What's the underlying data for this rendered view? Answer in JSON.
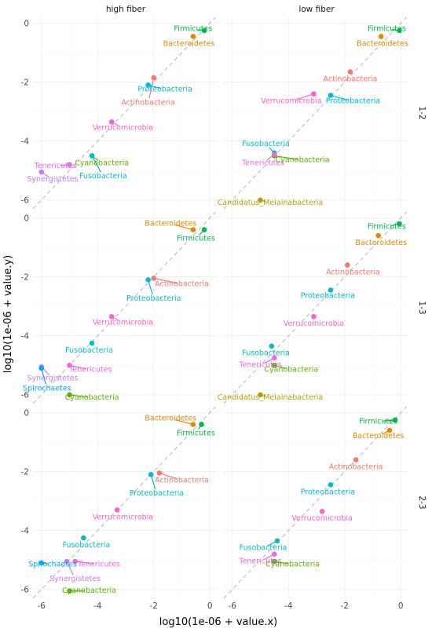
{
  "chart_data": {
    "type": "scatter",
    "xlabel": "log10(1e-06 + value.x)",
    "ylabel": "log10(1e-06 + value.y)",
    "xlim": [
      -6.3,
      0.3
    ],
    "ylim": [
      -6.3,
      0.2
    ],
    "x_ticks": [
      -6,
      -4,
      -2,
      0
    ],
    "y_ticks": [
      0,
      -2,
      -4,
      -6
    ],
    "grid": true,
    "reference_line": "y = x (dashed)",
    "col_facets": [
      "high fiber",
      "low fiber"
    ],
    "row_facets": [
      "1-2",
      "1-3",
      "2-3"
    ],
    "colors": {
      "Firmicutes": "#00b94a",
      "Bacteroidetes": "#e58700",
      "Proteobacteria": "#00bcd8",
      "Actinobacteria": "#f8766d",
      "Verrucomicrobia": "#fd61d1",
      "Cyanobacteria": "#5bb300",
      "Fusobacteria": "#00bfc4",
      "Tenericutes": "#f066ea",
      "Synergistetes": "#c77cff",
      "Spirochaetes": "#00a9ff",
      "Candidatus_Melainabacteria": "#b79f00"
    },
    "panels": [
      {
        "row": "1-2",
        "col": "high fiber",
        "points": [
          {
            "name": "Firmicutes",
            "x": -0.2,
            "y": -0.25,
            "lx": -0.6,
            "ly": -0.2
          },
          {
            "name": "Bacteroidetes",
            "x": -0.6,
            "y": -0.45,
            "lx": -0.75,
            "ly": -0.7
          },
          {
            "name": "Actinobacteria",
            "x": -2.0,
            "y": -1.85,
            "lx": -2.2,
            "ly": -2.7
          },
          {
            "name": "Proteobacteria",
            "x": -2.2,
            "y": -2.1,
            "lx": -1.6,
            "ly": -2.25
          },
          {
            "name": "Verrucomicrobia",
            "x": -3.5,
            "y": -3.35,
            "lx": -3.1,
            "ly": -3.55
          },
          {
            "name": "Cyanobacteria",
            "x": -4.2,
            "y": -4.5,
            "lx": -3.85,
            "ly": -4.75
          },
          {
            "name": "Fusobacteria",
            "x": -4.2,
            "y": -4.5,
            "lx": -3.8,
            "ly": -5.2
          },
          {
            "name": "Tenericutes",
            "x": -5.0,
            "y": -4.8,
            "lx": -5.5,
            "ly": -4.85
          },
          {
            "name": "Synergistetes",
            "x": -6.0,
            "y": -5.05,
            "lx": -5.6,
            "ly": -5.3
          }
        ]
      },
      {
        "row": "1-2",
        "col": "low fiber",
        "points": [
          {
            "name": "Firmicutes",
            "x": -0.05,
            "y": -0.25,
            "lx": -0.5,
            "ly": -0.2
          },
          {
            "name": "Bacteroidetes",
            "x": -0.7,
            "y": -0.45,
            "lx": -0.65,
            "ly": -0.7
          },
          {
            "name": "Actinobacteria",
            "x": -1.8,
            "y": -1.65,
            "lx": -1.8,
            "ly": -1.9
          },
          {
            "name": "Verrucomicrobia",
            "x": -3.1,
            "y": -2.4,
            "lx": -3.9,
            "ly": -2.65
          },
          {
            "name": "Proteobacteria",
            "x": -2.5,
            "y": -2.45,
            "lx": -1.7,
            "ly": -2.65
          },
          {
            "name": "Fusobacteria",
            "x": -4.5,
            "y": -4.4,
            "lx": -4.8,
            "ly": -4.1
          },
          {
            "name": "Cyanobacteria",
            "x": -4.5,
            "y": -4.5,
            "lx": -3.5,
            "ly": -4.65
          },
          {
            "name": "Tenericutes",
            "x": -4.5,
            "y": -4.45,
            "lx": -4.9,
            "ly": -4.75
          },
          {
            "name": "Candidatus_Melainabacteria",
            "x": -5.0,
            "y": -6.0,
            "lx": -4.65,
            "ly": -6.1
          }
        ]
      },
      {
        "row": "1-3",
        "col": "high fiber",
        "points": [
          {
            "name": "Bacteroidetes",
            "x": -0.6,
            "y": -0.4,
            "lx": -1.4,
            "ly": -0.2
          },
          {
            "name": "Firmicutes",
            "x": -0.2,
            "y": -0.4,
            "lx": -0.5,
            "ly": -0.7
          },
          {
            "name": "Actinobacteria",
            "x": -2.0,
            "y": -2.05,
            "lx": -1.0,
            "ly": -2.25
          },
          {
            "name": "Proteobacteria",
            "x": -2.2,
            "y": -2.1,
            "lx": -2.0,
            "ly": -2.75
          },
          {
            "name": "Verrucomicrobia",
            "x": -3.5,
            "y": -3.35,
            "lx": -3.1,
            "ly": -3.55
          },
          {
            "name": "Fusobacteria",
            "x": -4.2,
            "y": -4.25,
            "lx": -4.3,
            "ly": -4.5
          },
          {
            "name": "Tenericutes",
            "x": -5.0,
            "y": -5.0,
            "lx": -4.25,
            "ly": -5.15
          },
          {
            "name": "Synergistetes",
            "x": -6.0,
            "y": -5.05,
            "lx": -5.6,
            "ly": -5.45
          },
          {
            "name": "Spirochaetes",
            "x": -6.0,
            "y": -5.1,
            "lx": -5.8,
            "ly": -5.8
          },
          {
            "name": "Cyanobacteria",
            "x": -5.0,
            "y": -6.0,
            "lx": -4.2,
            "ly": -6.1
          }
        ]
      },
      {
        "row": "1-3",
        "col": "low fiber",
        "points": [
          {
            "name": "Firmicutes",
            "x": -0.05,
            "y": -0.2,
            "lx": -0.5,
            "ly": -0.3
          },
          {
            "name": "Bacteroidetes",
            "x": -0.8,
            "y": -0.6,
            "lx": -0.7,
            "ly": -0.85
          },
          {
            "name": "Actinobacteria",
            "x": -1.9,
            "y": -1.6,
            "lx": -1.7,
            "ly": -1.85
          },
          {
            "name": "Proteobacteria",
            "x": -2.5,
            "y": -2.45,
            "lx": -2.6,
            "ly": -2.65
          },
          {
            "name": "Verrucomicrobia",
            "x": -3.1,
            "y": -3.35,
            "lx": -3.1,
            "ly": -3.6
          },
          {
            "name": "Fusobacteria",
            "x": -4.6,
            "y": -4.35,
            "lx": -4.8,
            "ly": -4.6
          },
          {
            "name": "Tenericutes",
            "x": -4.5,
            "y": -4.75,
            "lx": -5.0,
            "ly": -5.0
          },
          {
            "name": "Cyanobacteria",
            "x": -4.5,
            "y": -5.0,
            "lx": -3.9,
            "ly": -5.15
          },
          {
            "name": "Candidatus_Melainabacteria",
            "x": -5.0,
            "y": -6.0,
            "lx": -4.65,
            "ly": -6.1
          }
        ]
      },
      {
        "row": "2-3",
        "col": "high fiber",
        "points": [
          {
            "name": "Bacteroidetes",
            "x": -0.6,
            "y": -0.4,
            "lx": -1.4,
            "ly": -0.2
          },
          {
            "name": "Firmicutes",
            "x": -0.3,
            "y": -0.4,
            "lx": -0.5,
            "ly": -0.7
          },
          {
            "name": "Actinobacteria",
            "x": -1.8,
            "y": -2.05,
            "lx": -1.0,
            "ly": -2.3
          },
          {
            "name": "Proteobacteria",
            "x": -2.1,
            "y": -2.1,
            "lx": -1.9,
            "ly": -2.75
          },
          {
            "name": "Verrucomicrobia",
            "x": -3.3,
            "y": -3.3,
            "lx": -3.1,
            "ly": -3.55
          },
          {
            "name": "Fusobacteria",
            "x": -4.5,
            "y": -4.25,
            "lx": -4.4,
            "ly": -4.5
          },
          {
            "name": "Spirochaetes",
            "x": -6.0,
            "y": -5.1,
            "lx": -5.6,
            "ly": -5.15
          },
          {
            "name": "Tenericutes",
            "x": -4.8,
            "y": -5.05,
            "lx": -3.95,
            "ly": -5.15
          },
          {
            "name": "Synergistetes",
            "x": -5.1,
            "y": -5.05,
            "lx": -4.8,
            "ly": -5.65
          },
          {
            "name": "Cyanobacteria",
            "x": -5.0,
            "y": -6.05,
            "lx": -4.3,
            "ly": -6.05
          }
        ]
      },
      {
        "row": "2-3",
        "col": "low fiber",
        "points": [
          {
            "name": "Firmicutes",
            "x": -0.2,
            "y": -0.25,
            "lx": -0.8,
            "ly": -0.3
          },
          {
            "name": "Bacteroidetes",
            "x": -0.4,
            "y": -0.6,
            "lx": -0.8,
            "ly": -0.8
          },
          {
            "name": "Actinobacteria",
            "x": -1.6,
            "y": -1.6,
            "lx": -1.6,
            "ly": -1.85
          },
          {
            "name": "Proteobacteria",
            "x": -2.5,
            "y": -2.45,
            "lx": -2.6,
            "ly": -2.7
          },
          {
            "name": "Verrucomicrobia",
            "x": -2.8,
            "y": -3.35,
            "lx": -2.8,
            "ly": -3.6
          },
          {
            "name": "Fusobacteria",
            "x": -4.4,
            "y": -4.35,
            "lx": -4.9,
            "ly": -4.6
          },
          {
            "name": "Tenericutes",
            "x": -4.5,
            "y": -4.8,
            "lx": -5.0,
            "ly": -5.05
          },
          {
            "name": "Cyanobacteria",
            "x": -4.5,
            "y": -5.05,
            "lx": -3.85,
            "ly": -5.15
          }
        ]
      }
    ]
  }
}
